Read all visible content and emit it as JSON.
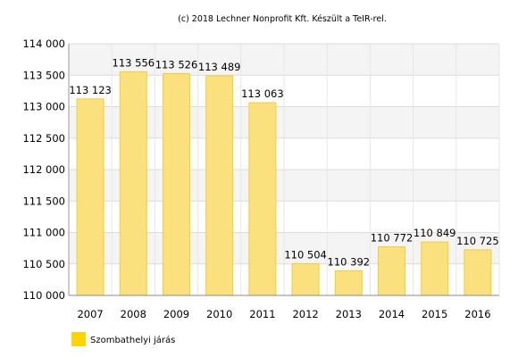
{
  "credit": "(c) 2018 Lechner Nonprofit Kft. Készült a TeIR-rel.",
  "chart_data": {
    "type": "bar",
    "categories": [
      "2007",
      "2008",
      "2009",
      "2010",
      "2011",
      "2012",
      "2013",
      "2014",
      "2015",
      "2016"
    ],
    "series": [
      {
        "name": "Szombathelyi járás",
        "values": [
          113123,
          113556,
          113526,
          113489,
          113063,
          110504,
          110392,
          110772,
          110849,
          110725
        ],
        "value_labels": [
          "113 123",
          "113 556",
          "113 526",
          "113 489",
          "113 063",
          "110 504",
          "110 392",
          "110 772",
          "110 849",
          "110 725"
        ],
        "color": "#fbe17d",
        "border_color": "#f3cd35"
      }
    ],
    "ylim": [
      110000,
      114000
    ],
    "yticks": [
      110000,
      110500,
      111000,
      111500,
      112000,
      112500,
      113000,
      113500,
      114000
    ],
    "ytick_labels": [
      "110 000",
      "110 500",
      "111 000",
      "111 500",
      "112 000",
      "112 500",
      "113 000",
      "113 500",
      "114 000"
    ],
    "grid": true,
    "legend_position": "bottom-left",
    "legend_swatch_color": "#ffd400"
  }
}
